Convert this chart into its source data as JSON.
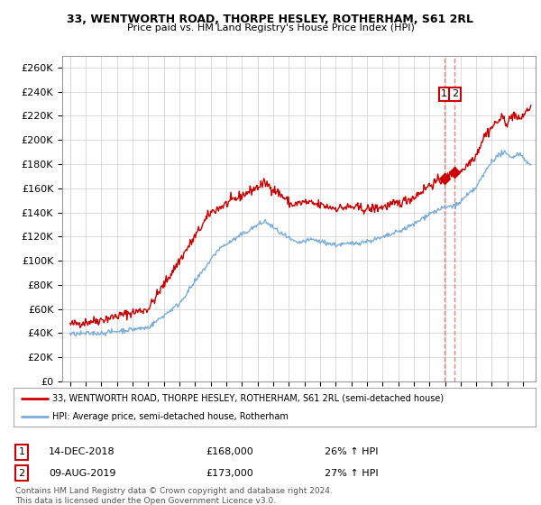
{
  "title1": "33, WENTWORTH ROAD, THORPE HESLEY, ROTHERHAM, S61 2RL",
  "title2": "Price paid vs. HM Land Registry's House Price Index (HPI)",
  "ylabel_ticks": [
    "£0",
    "£20K",
    "£40K",
    "£60K",
    "£80K",
    "£100K",
    "£120K",
    "£140K",
    "£160K",
    "£180K",
    "£200K",
    "£220K",
    "£240K",
    "£260K"
  ],
  "ytick_vals": [
    0,
    20000,
    40000,
    60000,
    80000,
    100000,
    120000,
    140000,
    160000,
    180000,
    200000,
    220000,
    240000,
    260000
  ],
  "ylim": [
    0,
    270000
  ],
  "red_color": "#cc0000",
  "blue_color": "#7aadda",
  "dashed_color": "#e88080",
  "annotation1": {
    "label": "1",
    "date": "14-DEC-2018",
    "price": "£168,000",
    "pct": "26% ↑ HPI",
    "x": 2018.96
  },
  "annotation2": {
    "label": "2",
    "date": "09-AUG-2019",
    "price": "£173,000",
    "pct": "27% ↑ HPI",
    "x": 2019.62
  },
  "legend_line1": "33, WENTWORTH ROAD, THORPE HESLEY, ROTHERHAM, S61 2RL (semi-detached house)",
  "legend_line2": "HPI: Average price, semi-detached house, Rotherham",
  "footer": "Contains HM Land Registry data © Crown copyright and database right 2024.\nThis data is licensed under the Open Government Licence v3.0.",
  "background_color": "#ffffff",
  "grid_color": "#cccccc",
  "xlim_left": 1994.5,
  "xlim_right": 2024.8
}
